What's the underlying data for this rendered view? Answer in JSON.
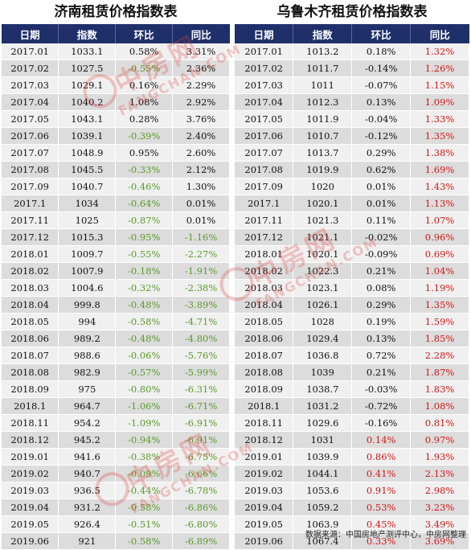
{
  "left": {
    "title": "济南租赁价格指数表",
    "headers": [
      "日期",
      "指数",
      "环比",
      "同比"
    ],
    "rows": [
      [
        "2017.01",
        "1033.1",
        "0.58%",
        "3.31%"
      ],
      [
        "2017.02",
        "1027.5",
        "-0.55%",
        "2.36%"
      ],
      [
        "2017.03",
        "1029.1",
        "0.16%",
        "2.29%"
      ],
      [
        "2017.04",
        "1040.2",
        "1.08%",
        "2.92%"
      ],
      [
        "2017.05",
        "1043.1",
        "0.28%",
        "3.76%"
      ],
      [
        "2017.06",
        "1039.1",
        "-0.39%",
        "2.40%"
      ],
      [
        "2017.07",
        "1048.9",
        "0.95%",
        "2.60%"
      ],
      [
        "2017.08",
        "1045.5",
        "-0.33%",
        "2.12%"
      ],
      [
        "2017.09",
        "1040.7",
        "-0.46%",
        "1.30%"
      ],
      [
        "2017.1",
        "1034",
        "-0.64%",
        "0.01%"
      ],
      [
        "2017.11",
        "1025",
        "-0.87%",
        "0.01%"
      ],
      [
        "2017.12",
        "1015.3",
        "-0.95%",
        "-1.16%"
      ],
      [
        "2018.01",
        "1009.7",
        "-0.55%",
        "-2.27%"
      ],
      [
        "2018.02",
        "1007.9",
        "-0.18%",
        "-1.91%"
      ],
      [
        "2018.03",
        "1004.6",
        "-0.32%",
        "-2.38%"
      ],
      [
        "2018.04",
        "999.8",
        "-0.48%",
        "-3.89%"
      ],
      [
        "2018.05",
        "994",
        "-0.58%",
        "-4.71%"
      ],
      [
        "2018.06",
        "989.2",
        "-0.48%",
        "-4.80%"
      ],
      [
        "2018.07",
        "988.6",
        "-0.06%",
        "-5.76%"
      ],
      [
        "2018.08",
        "982.9",
        "-0.57%",
        "-5.99%"
      ],
      [
        "2018.09",
        "975",
        "-0.80%",
        "-6.31%"
      ],
      [
        "2018.1",
        "964.7",
        "-1.06%",
        "-6.71%"
      ],
      [
        "2018.11",
        "954.2",
        "-1.09%",
        "-6.91%"
      ],
      [
        "2018.12",
        "945.2",
        "-0.94%",
        "-6.91%"
      ],
      [
        "2019.01",
        "941.6",
        "-0.38%",
        "-6.75%"
      ],
      [
        "2019.02",
        "940.7",
        "-0.09%",
        "-6.66%"
      ],
      [
        "2019.03",
        "936.5",
        "-0.44%",
        "-6.78%"
      ],
      [
        "2019.04",
        "931.2",
        "-0.58%",
        "-6.86%"
      ],
      [
        "2019.05",
        "926.4",
        "-0.51%",
        "-6.80%"
      ],
      [
        "2019.06",
        "921",
        "-0.58%",
        "-6.89%"
      ]
    ]
  },
  "right": {
    "title": "乌鲁木齐租赁价格指数表",
    "headers": [
      "日期",
      "指数",
      "环比",
      "同比"
    ],
    "rows": [
      [
        "2017.01",
        "1013.2",
        "0.18%",
        "1.32%"
      ],
      [
        "2017.02",
        "1011.7",
        "-0.14%",
        "1.26%"
      ],
      [
        "2017.03",
        "1011",
        "-0.07%",
        "1.15%"
      ],
      [
        "2017.04",
        "1012.3",
        "0.13%",
        "1.09%"
      ],
      [
        "2017.05",
        "1011.9",
        "-0.04%",
        "1.33%"
      ],
      [
        "2017.06",
        "1010.7",
        "-0.12%",
        "1.35%"
      ],
      [
        "2017.07",
        "1013.7",
        "0.29%",
        "1.38%"
      ],
      [
        "2017.08",
        "1019.9",
        "0.62%",
        "1.69%"
      ],
      [
        "2017.09",
        "1020",
        "0.01%",
        "1.43%"
      ],
      [
        "2017.1",
        "1020.1",
        "0.01%",
        "1.13%"
      ],
      [
        "2017.11",
        "1021.3",
        "0.11%",
        "1.07%"
      ],
      [
        "2017.12",
        "1021.1",
        "-0.02%",
        "0.96%"
      ],
      [
        "2018.01",
        "1020.1",
        "-0.09%",
        "0.69%"
      ],
      [
        "2018.02",
        "1022.3",
        "0.21%",
        "1.04%"
      ],
      [
        "2018.03",
        "1023.1",
        "0.08%",
        "1.19%"
      ],
      [
        "2018.04",
        "1026.1",
        "0.29%",
        "1.35%"
      ],
      [
        "2018.05",
        "1028",
        "0.19%",
        "1.59%"
      ],
      [
        "2018.06",
        "1029.4",
        "0.13%",
        "1.85%"
      ],
      [
        "2018.07",
        "1036.8",
        "0.72%",
        "2.28%"
      ],
      [
        "2018.08",
        "1039",
        "0.21%",
        "1.87%"
      ],
      [
        "2018.09",
        "1038.7",
        "-0.03%",
        "1.83%"
      ],
      [
        "2018.1",
        "1031.2",
        "-0.72%",
        "1.08%"
      ],
      [
        "2018.11",
        "1029.6",
        "-0.16%",
        "0.81%"
      ],
      [
        "2018.12",
        "1031",
        "0.14%",
        "0.97%"
      ],
      [
        "2019.01",
        "1039.9",
        "0.86%",
        "1.93%"
      ],
      [
        "2019.02",
        "1044.1",
        "0.41%",
        "2.13%"
      ],
      [
        "2019.03",
        "1053.6",
        "0.91%",
        "2.98%"
      ],
      [
        "2019.04",
        "1059.2",
        "0.53%",
        "3.23%"
      ],
      [
        "2019.05",
        "1063.9",
        "0.45%",
        "3.49%"
      ],
      [
        "2019.06",
        "1067.4",
        "0.33%",
        "3.69%"
      ]
    ],
    "red_change_from_row": 23
  },
  "watermark": {
    "text": "中房网",
    "sub": "FANGCHAN.COM"
  },
  "source": "数据来源：中国房地产测评中心，中房网整理",
  "colors": {
    "header_bg": "#1e2f6a",
    "negative": "#5a9a2a",
    "positive": "#d01818"
  }
}
